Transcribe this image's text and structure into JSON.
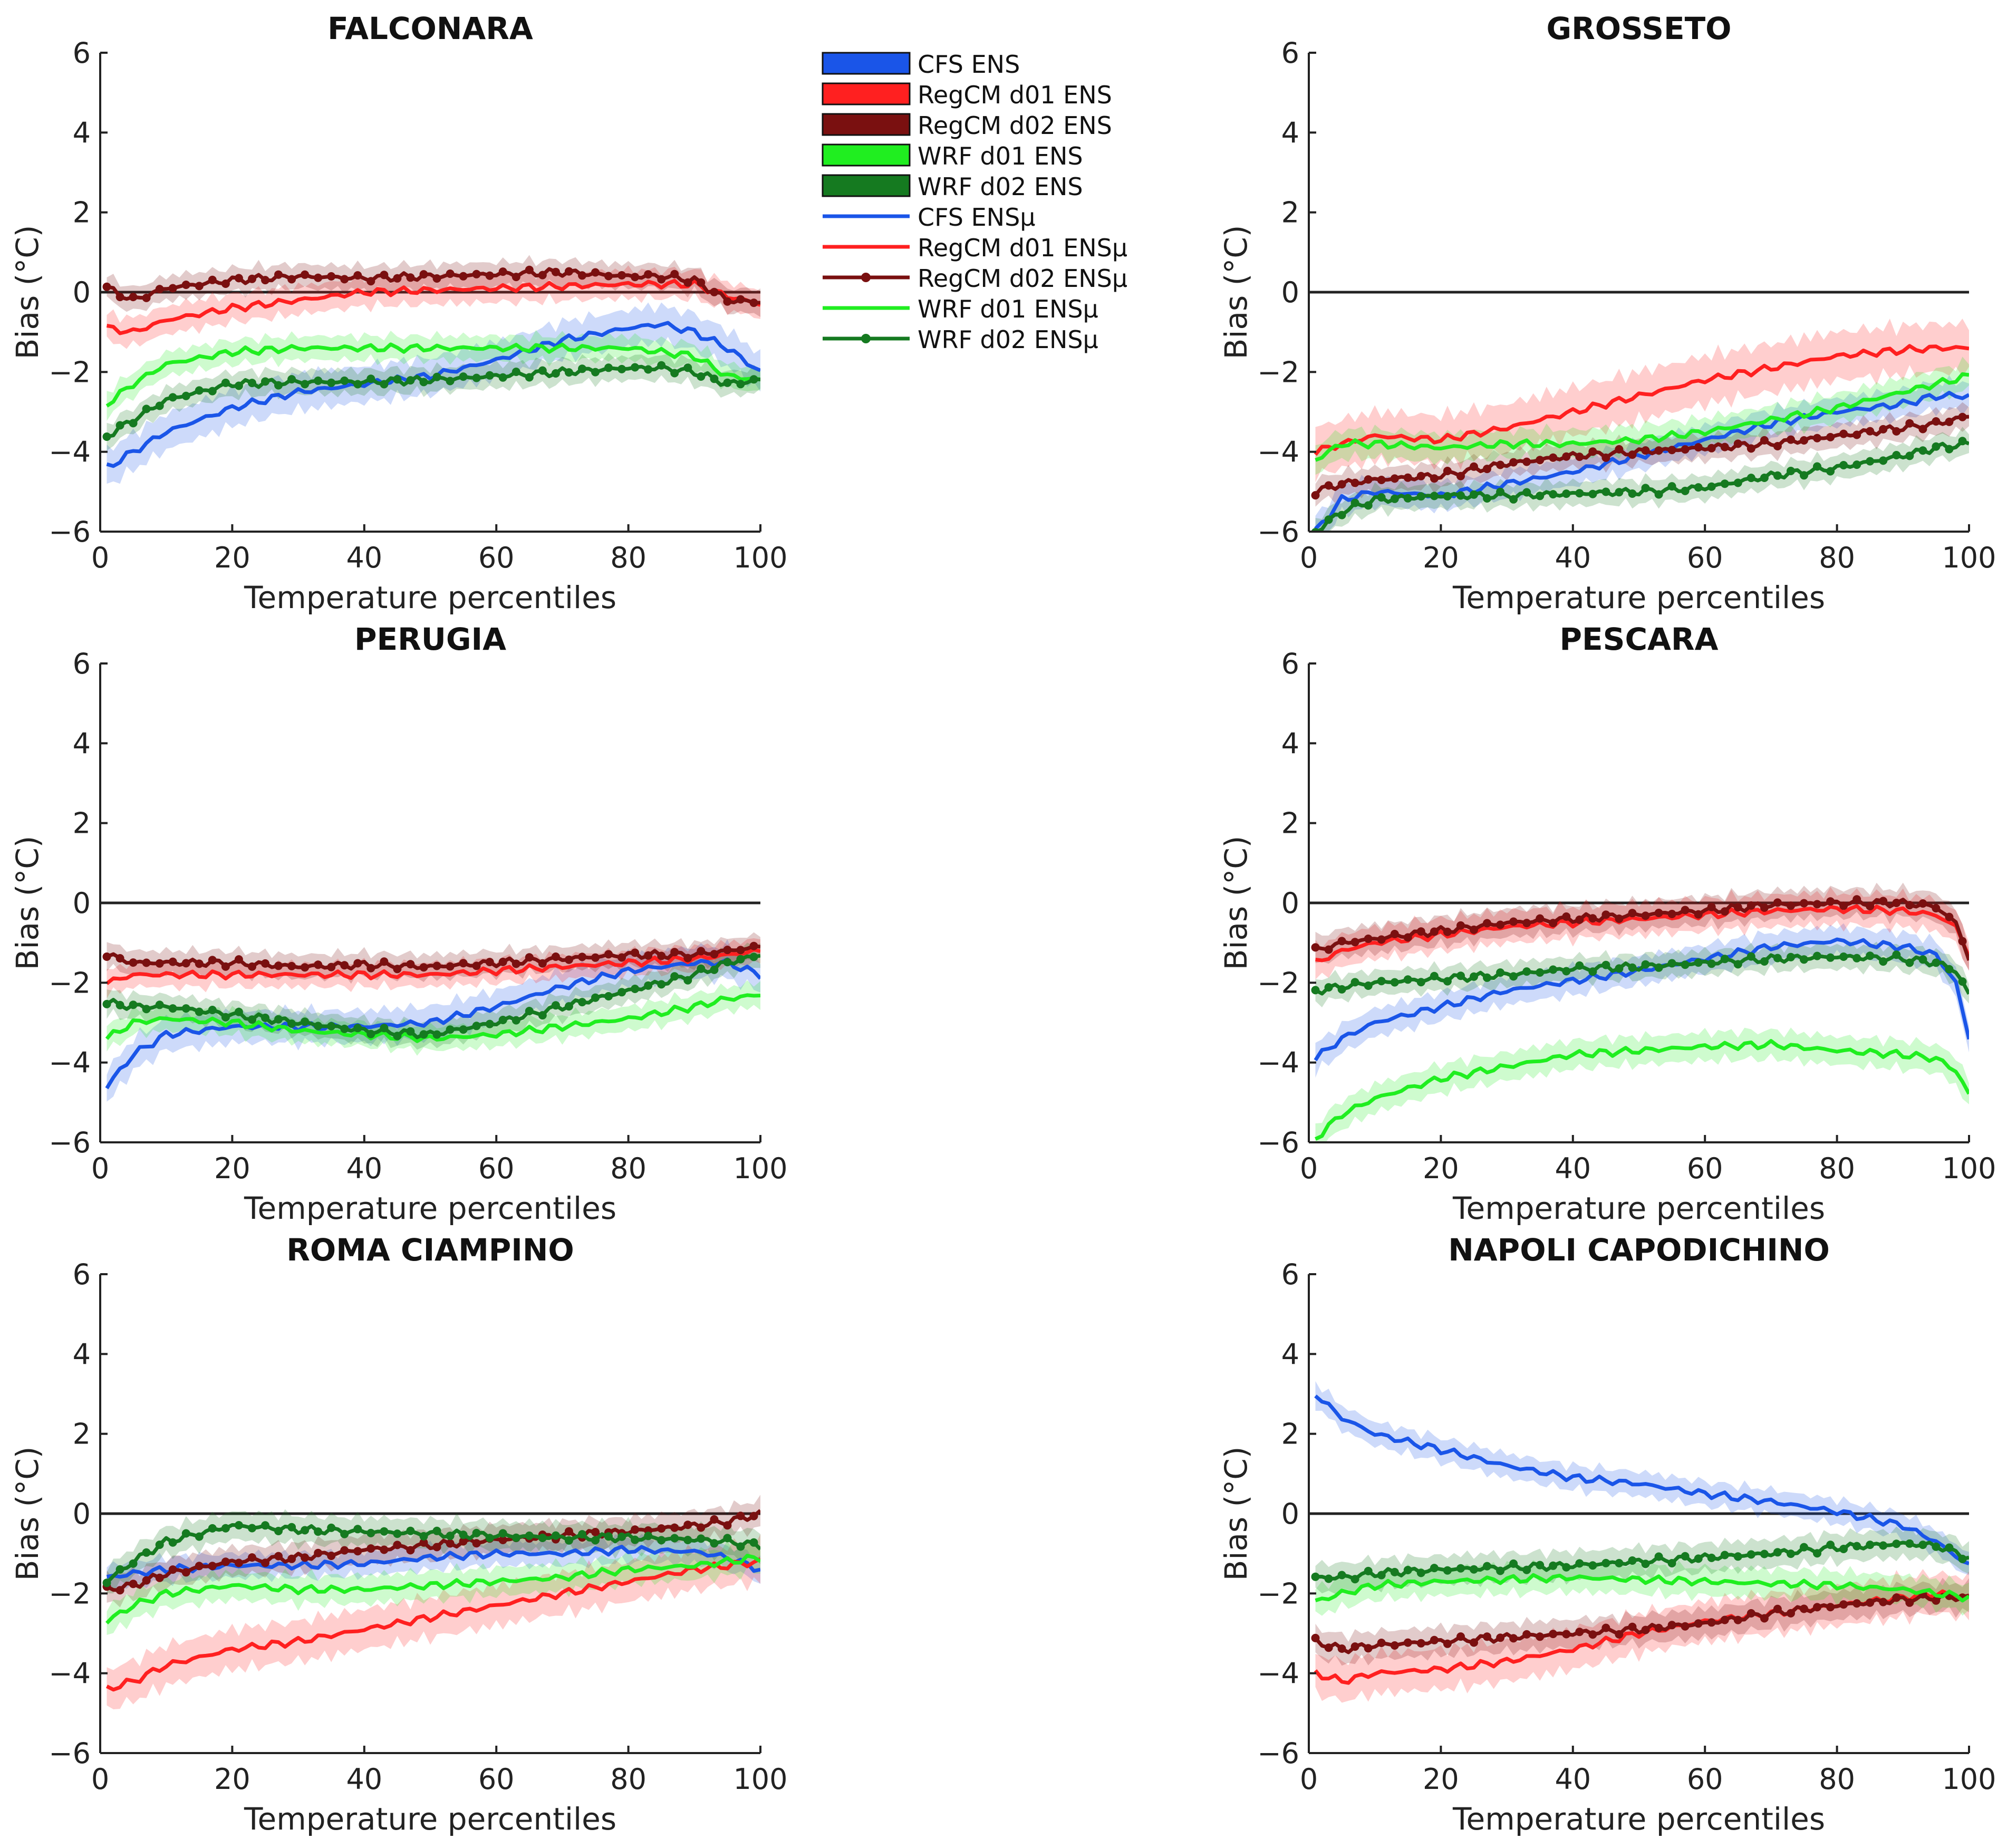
{
  "figure": {
    "legend": {
      "entries": [
        {
          "label": "CFS ENS",
          "kind": "patch",
          "color": "#1a55e8"
        },
        {
          "label": "RegCM d01 ENS",
          "kind": "patch",
          "color": "#ff2020"
        },
        {
          "label": "RegCM d02 ENS",
          "kind": "patch",
          "color": "#7a1010"
        },
        {
          "label": "WRF d01 ENS",
          "kind": "patch",
          "color": "#20ee20"
        },
        {
          "label": "WRF d02 ENS",
          "kind": "patch",
          "color": "#157a20"
        },
        {
          "label": "CFS ENSμ",
          "kind": "line",
          "color": "#1a55e8"
        },
        {
          "label": "RegCM d01 ENSμ",
          "kind": "line",
          "color": "#ff2020"
        },
        {
          "label": "RegCM d02 ENSμ",
          "kind": "line-marker",
          "color": "#7a1010"
        },
        {
          "label": "WRF d01 ENSμ",
          "kind": "line",
          "color": "#20ee20"
        },
        {
          "label": "WRF d02 ENSμ",
          "kind": "line-marker",
          "color": "#157a20"
        }
      ]
    }
  },
  "chart_data": [
    {
      "type": "line",
      "title": "FALCONARA",
      "xlabel": "Temperature percentiles",
      "ylabel": "Bias (°C)",
      "xlim": [
        0,
        100
      ],
      "ylim": [
        -6,
        6
      ],
      "xticks": [
        0,
        20,
        40,
        60,
        80,
        100
      ],
      "yticks": [
        -6,
        -4,
        -2,
        0,
        2,
        4,
        6
      ],
      "zero_line": true,
      "x": [
        1,
        5,
        10,
        20,
        30,
        40,
        50,
        60,
        70,
        80,
        85,
        90,
        95,
        100
      ],
      "series": [
        {
          "name": "CFS ENSμ",
          "color": "#1a55e8",
          "markers": false,
          "band": 0.45,
          "values": [
            -4.4,
            -4.0,
            -3.5,
            -2.9,
            -2.5,
            -2.3,
            -2.1,
            -1.7,
            -1.2,
            -0.9,
            -0.8,
            -1.0,
            -1.4,
            -2.0
          ]
        },
        {
          "name": "RegCM d01 ENSμ",
          "color": "#ff2020",
          "markers": false,
          "band": 0.35,
          "values": [
            -0.9,
            -1.0,
            -0.7,
            -0.4,
            -0.2,
            0.0,
            0.05,
            0.1,
            0.15,
            0.2,
            0.2,
            0.2,
            -0.1,
            -0.3
          ]
        },
        {
          "name": "RegCM d02 ENSμ",
          "color": "#7a1010",
          "markers": true,
          "band": 0.3,
          "values": [
            0.1,
            -0.2,
            0.1,
            0.3,
            0.4,
            0.35,
            0.4,
            0.45,
            0.5,
            0.4,
            0.4,
            0.3,
            -0.2,
            -0.25
          ]
        },
        {
          "name": "WRF d01 ENSμ",
          "color": "#20ee20",
          "markers": false,
          "band": 0.3,
          "values": [
            -2.8,
            -2.3,
            -1.8,
            -1.5,
            -1.4,
            -1.4,
            -1.4,
            -1.4,
            -1.4,
            -1.4,
            -1.5,
            -1.6,
            -2.1,
            -2.2
          ]
        },
        {
          "name": "WRF d02 ENSμ",
          "color": "#157a20",
          "markers": true,
          "band": 0.3,
          "values": [
            -3.6,
            -3.2,
            -2.7,
            -2.3,
            -2.25,
            -2.25,
            -2.2,
            -2.1,
            -2.0,
            -1.9,
            -1.9,
            -2.0,
            -2.3,
            -2.2
          ]
        }
      ]
    },
    {
      "type": "line",
      "title": "GROSSETO",
      "xlabel": "Temperature percentiles",
      "ylabel": "Bias (°C)",
      "xlim": [
        0,
        100
      ],
      "ylim": [
        -6,
        6
      ],
      "xticks": [
        0,
        20,
        40,
        60,
        80,
        100
      ],
      "yticks": [
        -6,
        -4,
        -2,
        0,
        2,
        4,
        6
      ],
      "zero_line": true,
      "x": [
        1,
        5,
        10,
        20,
        30,
        40,
        50,
        60,
        70,
        80,
        90,
        95,
        100
      ],
      "series": [
        {
          "name": "CFS ENSμ",
          "color": "#1a55e8",
          "markers": false,
          "band": 0.35,
          "values": [
            -6.0,
            -5.2,
            -5.0,
            -5.1,
            -4.8,
            -4.5,
            -4.1,
            -3.7,
            -3.3,
            -3.0,
            -2.8,
            -2.6,
            -2.6
          ]
        },
        {
          "name": "RegCM d01 ENSμ",
          "color": "#ff2020",
          "markers": false,
          "band": 0.6,
          "values": [
            -4.0,
            -3.8,
            -3.6,
            -3.7,
            -3.4,
            -3.0,
            -2.6,
            -2.2,
            -1.9,
            -1.6,
            -1.45,
            -1.4,
            -1.4
          ]
        },
        {
          "name": "RegCM d02 ENSμ",
          "color": "#7a1010",
          "markers": true,
          "band": 0.3,
          "values": [
            -5.0,
            -4.8,
            -4.7,
            -4.6,
            -4.3,
            -4.1,
            -4.0,
            -3.9,
            -3.8,
            -3.6,
            -3.4,
            -3.3,
            -3.1
          ]
        },
        {
          "name": "WRF d01 ENSμ",
          "color": "#20ee20",
          "markers": false,
          "band": 0.35,
          "values": [
            -4.2,
            -3.8,
            -3.8,
            -3.9,
            -3.8,
            -3.8,
            -3.7,
            -3.5,
            -3.2,
            -2.9,
            -2.5,
            -2.3,
            -2.1
          ]
        },
        {
          "name": "WRF d02 ENSμ",
          "color": "#157a20",
          "markers": true,
          "band": 0.3,
          "values": [
            -6.0,
            -5.5,
            -5.2,
            -5.1,
            -5.1,
            -5.05,
            -5.0,
            -4.9,
            -4.6,
            -4.4,
            -4.1,
            -3.9,
            -3.8
          ]
        }
      ]
    },
    {
      "type": "line",
      "title": "PERUGIA",
      "xlabel": "Temperature percentiles",
      "ylabel": "Bias (°C)",
      "xlim": [
        0,
        100
      ],
      "ylim": [
        -6,
        6
      ],
      "xticks": [
        0,
        20,
        40,
        60,
        80,
        100
      ],
      "yticks": [
        -6,
        -4,
        -2,
        0,
        2,
        4,
        6
      ],
      "zero_line": true,
      "x": [
        1,
        5,
        10,
        20,
        30,
        40,
        50,
        60,
        70,
        80,
        90,
        95,
        100
      ],
      "series": [
        {
          "name": "CFS ENSμ",
          "color": "#1a55e8",
          "markers": false,
          "band": 0.4,
          "values": [
            -4.6,
            -3.8,
            -3.3,
            -3.1,
            -3.1,
            -3.1,
            -3.0,
            -2.6,
            -2.1,
            -1.7,
            -1.5,
            -1.5,
            -1.8
          ]
        },
        {
          "name": "RegCM d01 ENSμ",
          "color": "#ff2020",
          "markers": false,
          "band": 0.3,
          "values": [
            -2.0,
            -1.8,
            -1.8,
            -1.8,
            -1.8,
            -1.8,
            -1.8,
            -1.7,
            -1.6,
            -1.5,
            -1.4,
            -1.3,
            -1.2
          ]
        },
        {
          "name": "RegCM d02 ENSμ",
          "color": "#7a1010",
          "markers": true,
          "band": 0.3,
          "values": [
            -1.3,
            -1.5,
            -1.5,
            -1.5,
            -1.6,
            -1.55,
            -1.6,
            -1.5,
            -1.4,
            -1.3,
            -1.3,
            -1.2,
            -1.1
          ]
        },
        {
          "name": "WRF d01 ENSμ",
          "color": "#20ee20",
          "markers": false,
          "band": 0.3,
          "values": [
            -3.4,
            -3.0,
            -2.9,
            -3.0,
            -3.2,
            -3.3,
            -3.4,
            -3.3,
            -3.1,
            -2.9,
            -2.6,
            -2.4,
            -2.3
          ]
        },
        {
          "name": "WRF d02 ENSμ",
          "color": "#157a20",
          "markers": true,
          "band": 0.3,
          "values": [
            -2.5,
            -2.6,
            -2.6,
            -2.8,
            -3.0,
            -3.2,
            -3.3,
            -3.0,
            -2.6,
            -2.2,
            -1.8,
            -1.5,
            -1.3
          ]
        }
      ]
    },
    {
      "type": "line",
      "title": "PESCARA",
      "xlabel": "Temperature percentiles",
      "ylabel": "Bias (°C)",
      "xlim": [
        0,
        100
      ],
      "ylim": [
        -6,
        6
      ],
      "xticks": [
        0,
        20,
        40,
        60,
        80,
        100
      ],
      "yticks": [
        -6,
        -4,
        -2,
        0,
        2,
        4,
        6
      ],
      "zero_line": true,
      "x": [
        1,
        5,
        10,
        20,
        30,
        40,
        50,
        60,
        70,
        80,
        90,
        95,
        98,
        100
      ],
      "series": [
        {
          "name": "CFS ENSμ",
          "color": "#1a55e8",
          "markers": false,
          "band": 0.35,
          "values": [
            -3.9,
            -3.4,
            -3.0,
            -2.6,
            -2.2,
            -1.95,
            -1.7,
            -1.4,
            -1.1,
            -0.95,
            -1.1,
            -1.3,
            -2.0,
            -3.4
          ]
        },
        {
          "name": "RegCM d01 ENSμ",
          "color": "#ff2020",
          "markers": false,
          "band": 0.4,
          "values": [
            -1.5,
            -1.2,
            -1.0,
            -0.8,
            -0.6,
            -0.5,
            -0.4,
            -0.3,
            -0.2,
            -0.15,
            -0.2,
            -0.3,
            -0.6,
            -1.3
          ]
        },
        {
          "name": "RegCM d02 ENSμ",
          "color": "#7a1010",
          "markers": true,
          "band": 0.35,
          "values": [
            -1.2,
            -1.0,
            -0.9,
            -0.7,
            -0.5,
            -0.4,
            -0.3,
            -0.2,
            -0.05,
            0.0,
            0.0,
            -0.1,
            -0.5,
            -1.4
          ]
        },
        {
          "name": "WRF d01 ENSμ",
          "color": "#20ee20",
          "markers": false,
          "band": 0.35,
          "values": [
            -5.9,
            -5.3,
            -4.9,
            -4.4,
            -4.1,
            -3.8,
            -3.7,
            -3.6,
            -3.55,
            -3.7,
            -3.8,
            -3.9,
            -4.2,
            -4.8
          ]
        },
        {
          "name": "WRF d02 ENSμ",
          "color": "#157a20",
          "markers": true,
          "band": 0.3,
          "values": [
            -2.2,
            -2.1,
            -2.0,
            -1.9,
            -1.8,
            -1.65,
            -1.6,
            -1.5,
            -1.4,
            -1.35,
            -1.4,
            -1.5,
            -1.7,
            -2.3
          ]
        }
      ]
    },
    {
      "type": "line",
      "title": "ROMA CIAMPINO",
      "xlabel": "Temperature percentiles",
      "ylabel": "Bias (°C)",
      "xlim": [
        0,
        100
      ],
      "ylim": [
        -6,
        6
      ],
      "xticks": [
        0,
        20,
        40,
        60,
        80,
        100
      ],
      "yticks": [
        -6,
        -4,
        -2,
        0,
        2,
        4,
        6
      ],
      "zero_line": true,
      "x": [
        1,
        5,
        10,
        20,
        30,
        40,
        50,
        60,
        70,
        80,
        90,
        95,
        100
      ],
      "series": [
        {
          "name": "CFS ENSμ",
          "color": "#1a55e8",
          "markers": false,
          "band": 0.3,
          "values": [
            -1.6,
            -1.5,
            -1.4,
            -1.3,
            -1.3,
            -1.25,
            -1.1,
            -1.0,
            -1.0,
            -0.9,
            -0.95,
            -1.1,
            -1.4
          ]
        },
        {
          "name": "RegCM d01 ENSμ",
          "color": "#ff2020",
          "markers": false,
          "band": 0.5,
          "values": [
            -4.4,
            -4.2,
            -3.8,
            -3.4,
            -3.2,
            -2.9,
            -2.6,
            -2.3,
            -2.0,
            -1.7,
            -1.4,
            -1.3,
            -1.2
          ]
        },
        {
          "name": "RegCM d02 ENSμ",
          "color": "#7a1010",
          "markers": true,
          "band": 0.35,
          "values": [
            -1.9,
            -1.8,
            -1.5,
            -1.2,
            -1.1,
            -0.9,
            -0.8,
            -0.65,
            -0.55,
            -0.45,
            -0.3,
            -0.2,
            0.0
          ]
        },
        {
          "name": "WRF d01 ENSμ",
          "color": "#20ee20",
          "markers": false,
          "band": 0.35,
          "values": [
            -2.7,
            -2.3,
            -2.0,
            -1.8,
            -1.9,
            -1.9,
            -1.8,
            -1.7,
            -1.6,
            -1.4,
            -1.3,
            -1.2,
            -1.1
          ]
        },
        {
          "name": "WRF d02 ENSμ",
          "color": "#157a20",
          "markers": true,
          "band": 0.35,
          "values": [
            -1.7,
            -1.2,
            -0.7,
            -0.3,
            -0.4,
            -0.45,
            -0.5,
            -0.55,
            -0.6,
            -0.6,
            -0.65,
            -0.7,
            -0.8
          ]
        }
      ]
    },
    {
      "type": "line",
      "title": "NAPOLI CAPODICHINO",
      "xlabel": "Temperature percentiles",
      "ylabel": "Bias (°C)",
      "xlim": [
        0,
        100
      ],
      "ylim": [
        -6,
        6
      ],
      "xticks": [
        0,
        20,
        40,
        60,
        80,
        100
      ],
      "yticks": [
        -6,
        -4,
        -2,
        0,
        2,
        4,
        6
      ],
      "zero_line": true,
      "x": [
        1,
        5,
        10,
        20,
        30,
        40,
        50,
        60,
        70,
        80,
        90,
        95,
        100
      ],
      "series": [
        {
          "name": "CFS ENSμ",
          "color": "#1a55e8",
          "markers": false,
          "band": 0.3,
          "values": [
            3.0,
            2.4,
            2.0,
            1.6,
            1.2,
            0.9,
            0.75,
            0.5,
            0.3,
            0.05,
            -0.3,
            -0.7,
            -1.3
          ]
        },
        {
          "name": "RegCM d01 ENSμ",
          "color": "#ff2020",
          "markers": false,
          "band": 0.5,
          "values": [
            -4.0,
            -4.2,
            -4.0,
            -3.9,
            -3.7,
            -3.4,
            -3.0,
            -2.7,
            -2.5,
            -2.3,
            -2.1,
            -2.0,
            -2.1
          ]
        },
        {
          "name": "RegCM d02 ENSμ",
          "color": "#7a1010",
          "markers": true,
          "band": 0.35,
          "values": [
            -3.2,
            -3.4,
            -3.3,
            -3.2,
            -3.1,
            -3.0,
            -2.9,
            -2.75,
            -2.5,
            -2.3,
            -2.15,
            -2.1,
            -2.1
          ]
        },
        {
          "name": "WRF d01 ENSμ",
          "color": "#20ee20",
          "markers": false,
          "band": 0.35,
          "values": [
            -2.2,
            -2.0,
            -1.8,
            -1.7,
            -1.65,
            -1.6,
            -1.65,
            -1.7,
            -1.75,
            -1.8,
            -1.9,
            -2.0,
            -2.1
          ]
        },
        {
          "name": "WRF d02 ENSμ",
          "color": "#157a20",
          "markers": true,
          "band": 0.35,
          "values": [
            -1.6,
            -1.6,
            -1.5,
            -1.4,
            -1.35,
            -1.3,
            -1.2,
            -1.1,
            -1.0,
            -0.85,
            -0.75,
            -0.8,
            -1.1
          ]
        }
      ]
    }
  ]
}
